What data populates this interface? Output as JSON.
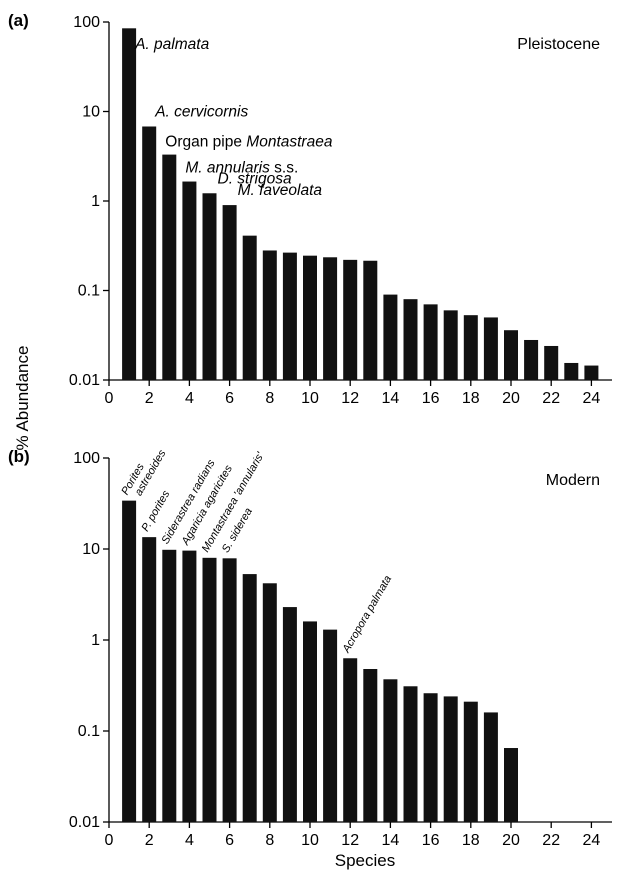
{
  "figure": {
    "ylabel": "% Abundance",
    "xlabel": "Species"
  },
  "chart_data": [
    {
      "type": "bar",
      "panel_letter": "(a)",
      "panel_label": "Pleistocene",
      "y_scale": "log",
      "ylim": [
        0.01,
        100
      ],
      "y_ticks": [
        "100",
        "10",
        "1",
        "0.1",
        "0.01"
      ],
      "y_tick_values": [
        100,
        10,
        1,
        0.1,
        0.01
      ],
      "xlim": [
        0,
        25
      ],
      "x_ticks": [
        "0",
        "2",
        "4",
        "6",
        "8",
        "10",
        "12",
        "14",
        "16",
        "18",
        "20",
        "22",
        "24"
      ],
      "x_tick_values": [
        0,
        2,
        4,
        6,
        8,
        10,
        12,
        14,
        16,
        18,
        20,
        22,
        24
      ],
      "x": [
        1,
        2,
        3,
        4,
        5,
        6,
        7,
        8,
        9,
        10,
        11,
        12,
        13,
        14,
        15,
        16,
        17,
        18,
        19,
        20,
        21,
        22,
        23,
        24
      ],
      "values": [
        85,
        6.8,
        3.3,
        1.65,
        1.22,
        0.9,
        0.41,
        0.28,
        0.265,
        0.245,
        0.235,
        0.22,
        0.215,
        0.09,
        0.08,
        0.07,
        0.06,
        0.053,
        0.05,
        0.036,
        0.028,
        0.024,
        0.0155,
        0.0145
      ],
      "annotations": [
        {
          "species": 1,
          "parts": [
            {
              "text": "A. palmata",
              "italic": true
            }
          ]
        },
        {
          "species": 2,
          "parts": [
            {
              "text": "A. cervicornis",
              "italic": true
            }
          ]
        },
        {
          "species": 3,
          "parts": [
            {
              "text": "Organ pipe ",
              "italic": false
            },
            {
              "text": "Montastraea",
              "italic": true
            }
          ]
        },
        {
          "species": 4,
          "parts": [
            {
              "text": "M. annularis",
              "italic": true
            },
            {
              "text": " s.s.",
              "italic": false
            }
          ]
        },
        {
          "species": 5,
          "parts": [
            {
              "text": "D. strigosa",
              "italic": true
            }
          ]
        },
        {
          "species": 6,
          "parts": [
            {
              "text": "M. faveolata",
              "italic": true
            }
          ]
        }
      ]
    },
    {
      "type": "bar",
      "panel_letter": "(b)",
      "panel_label": "Modern",
      "y_scale": "log",
      "ylim": [
        0.01,
        100
      ],
      "y_ticks": [
        "100",
        "10",
        "1",
        "0.1",
        "0.01"
      ],
      "y_tick_values": [
        100,
        10,
        1,
        0.1,
        0.01
      ],
      "xlim": [
        0,
        25
      ],
      "x_ticks": [
        "0",
        "2",
        "4",
        "6",
        "8",
        "10",
        "12",
        "14",
        "16",
        "18",
        "20",
        "22",
        "24"
      ],
      "x_tick_values": [
        0,
        2,
        4,
        6,
        8,
        10,
        12,
        14,
        16,
        18,
        20,
        22,
        24
      ],
      "x": [
        1,
        2,
        3,
        4,
        5,
        6,
        7,
        8,
        9,
        10,
        11,
        12,
        13,
        14,
        15,
        16,
        17,
        18,
        19,
        20
      ],
      "values": [
        34,
        13.5,
        9.8,
        9.6,
        8.0,
        7.9,
        5.3,
        4.2,
        2.3,
        1.6,
        1.3,
        0.63,
        0.48,
        0.37,
        0.31,
        0.26,
        0.24,
        0.21,
        0.16,
        0.065
      ],
      "annotations": [
        {
          "species": 1,
          "lines": [
            "Porites",
            "astreoides"
          ]
        },
        {
          "species": 2,
          "lines": [
            "P. porites"
          ]
        },
        {
          "species": 3,
          "lines": [
            "Siderastrea radians"
          ]
        },
        {
          "species": 4,
          "lines": [
            "Agaricia agaricites"
          ]
        },
        {
          "species": 5,
          "lines": [
            "Montastraea 'annularis'"
          ]
        },
        {
          "species": 6,
          "lines": [
            "S. siderea"
          ]
        },
        {
          "species": 12,
          "lines": [
            "Acropora palmata"
          ]
        }
      ]
    }
  ]
}
